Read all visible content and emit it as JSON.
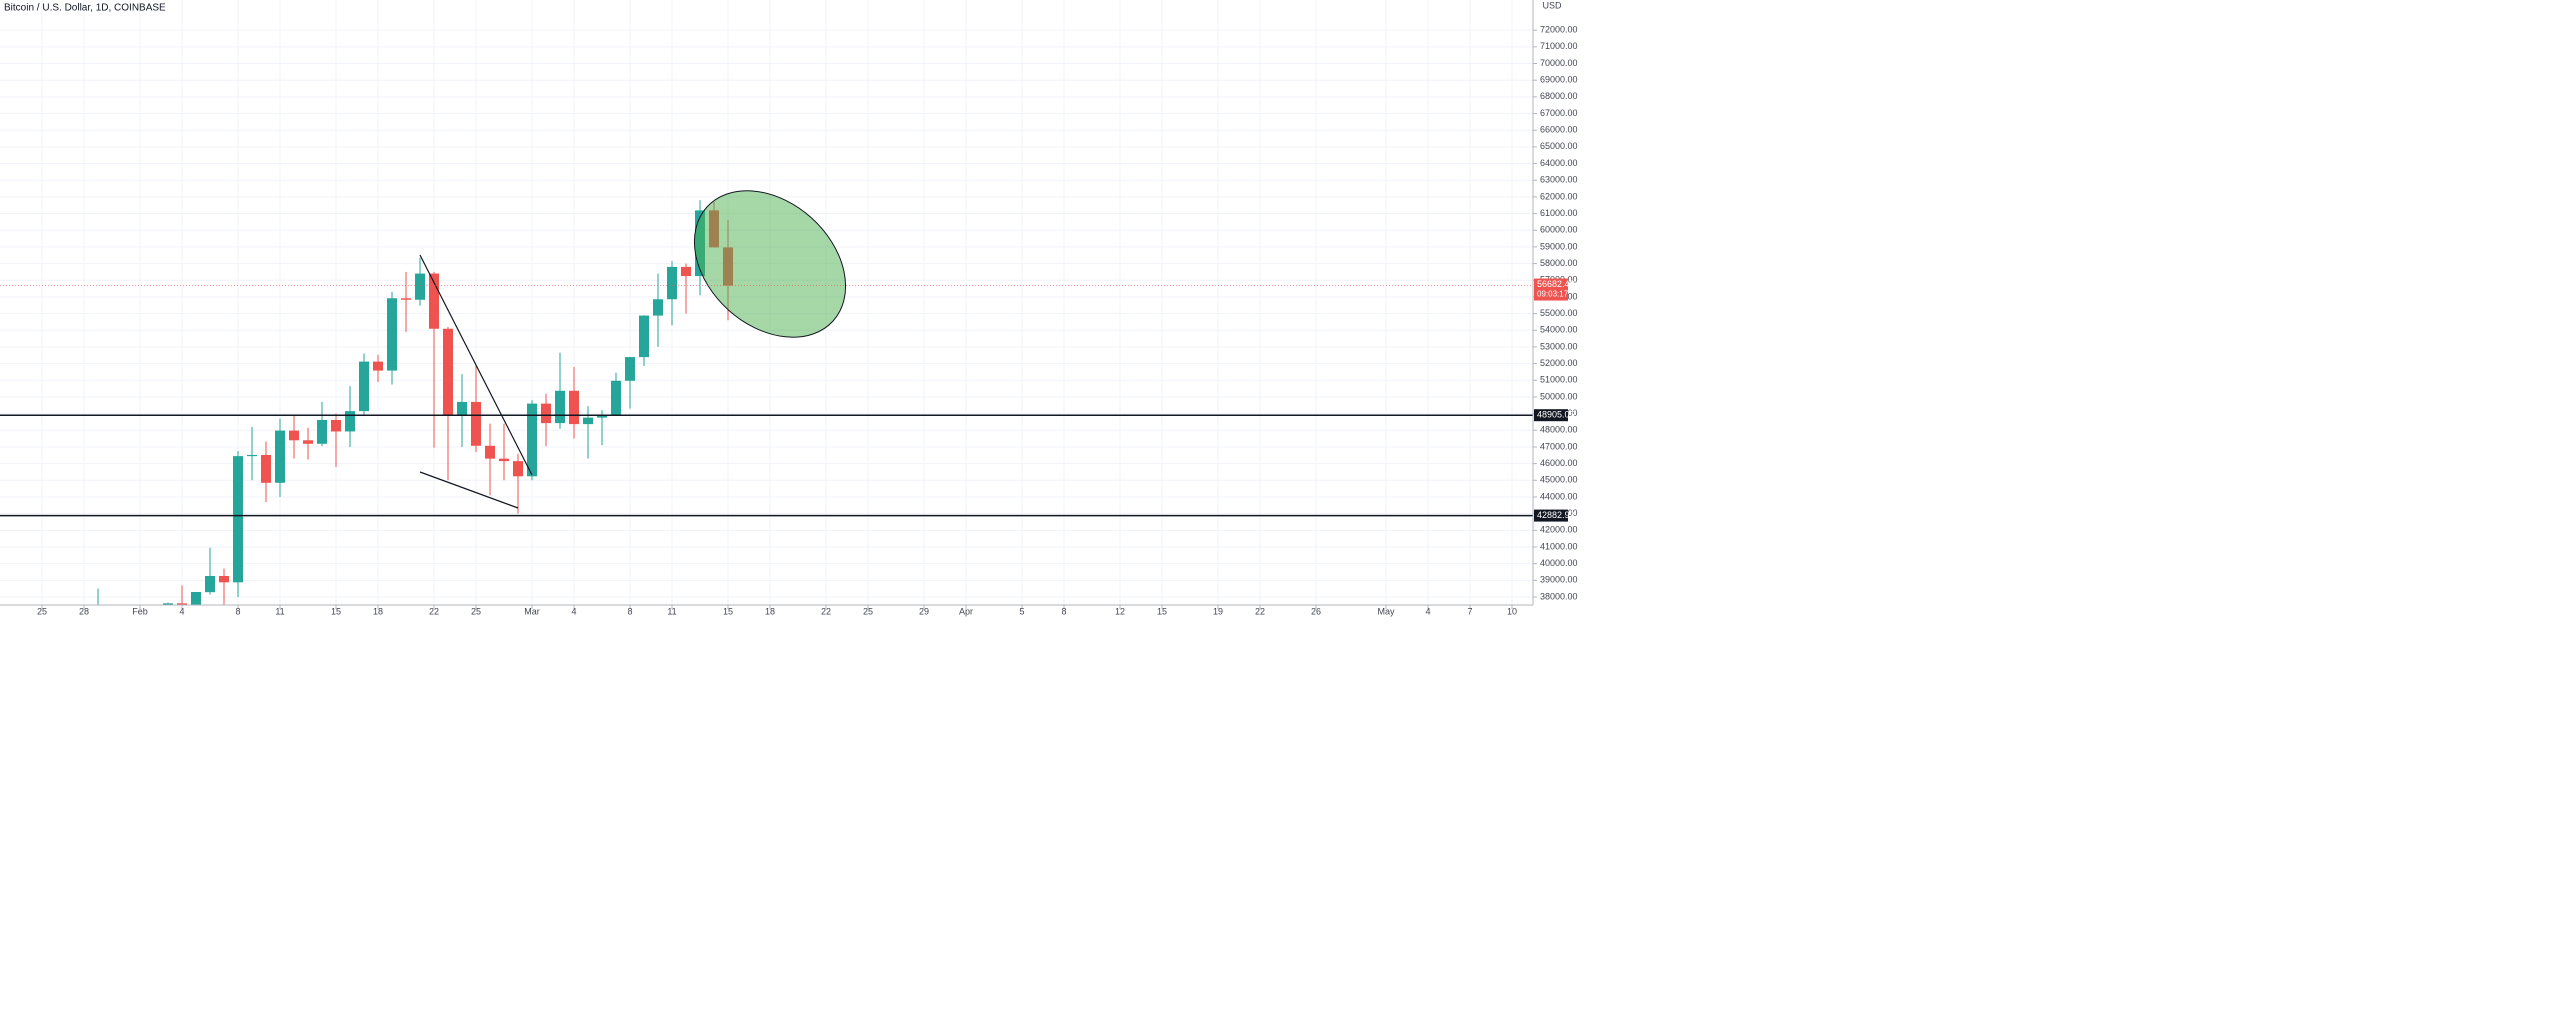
{
  "chart_data": {
    "type": "candlestick",
    "title": "Bitcoin / U.S. Dollar, 1D, COINBASE",
    "currency": "USD",
    "up_color": "#26a69a",
    "down_color": "#ef5350",
    "x": [
      "01-29",
      "02-03",
      "02-04",
      "02-05",
      "02-06",
      "02-07",
      "02-08",
      "02-09",
      "02-10",
      "02-11",
      "02-12",
      "02-13",
      "02-14",
      "02-15",
      "02-16",
      "02-17",
      "02-18",
      "02-19",
      "02-20",
      "02-21",
      "02-22",
      "02-23",
      "02-24",
      "02-25",
      "02-26",
      "02-27",
      "02-28",
      "03-01",
      "03-02",
      "03-03",
      "03-04",
      "03-05",
      "03-06",
      "03-07",
      "03-08",
      "03-09",
      "03-10",
      "03-11",
      "03-12",
      "03-13",
      "03-14",
      "03-15"
    ],
    "open": [
      34300,
      35480,
      37620,
      36900,
      38290,
      39260,
      38880,
      46450,
      46520,
      44850,
      47980,
      47400,
      47190,
      48620,
      47930,
      49150,
      52120,
      51580,
      55920,
      55830,
      57400,
      54090,
      48890,
      49700,
      47070,
      46300,
      46150,
      45240,
      49600,
      48430,
      50370,
      48370,
      48760,
      48880,
      50970,
      52390,
      54880,
      55860,
      57800,
      57250,
      61190,
      58970
    ],
    "high": [
      38500,
      37660,
      38700,
      38300,
      40955,
      39700,
      46750,
      48200,
      47330,
      48700,
      48900,
      48150,
      49700,
      49000,
      50650,
      52600,
      52530,
      56300,
      57500,
      58350,
      57500,
      54200,
      51370,
      51950,
      48400,
      48400,
      46600,
      49800,
      50200,
      52650,
      51800,
      49450,
      49200,
      51450,
      52400,
      54900,
      57400,
      58150,
      58000,
      61800,
      61700,
      60600
    ],
    "low": [
      31900,
      35360,
      36200,
      36600,
      38140,
      37350,
      37990,
      45000,
      43700,
      44000,
      46300,
      46250,
      47050,
      45800,
      47000,
      48950,
      50900,
      50750,
      53900,
      55480,
      46950,
      45000,
      47000,
      46700,
      44100,
      45000,
      43000,
      45000,
      47050,
      48100,
      47500,
      46300,
      47100,
      48880,
      49300,
      51850,
      53000,
      54300,
      55000,
      56100,
      58970,
      54600
    ],
    "close": [
      34300,
      37620,
      36900,
      38300,
      39260,
      38880,
      46450,
      46520,
      44850,
      47980,
      47400,
      47190,
      48620,
      47930,
      49150,
      52120,
      51580,
      55920,
      55830,
      57400,
      54090,
      48890,
      49700,
      47070,
      46300,
      46150,
      45240,
      49600,
      48430,
      50370,
      48370,
      48760,
      48880,
      50970,
      52390,
      54880,
      55860,
      57800,
      57250,
      61190,
      58970,
      56680
    ],
    "ylim": [
      37520,
      73810
    ],
    "yticks": [
      {
        "value": 38000,
        "label": "38000.00"
      },
      {
        "value": 39000,
        "label": "39000.00"
      },
      {
        "value": 40000,
        "label": "40000.00"
      },
      {
        "value": 41000,
        "label": "41000.00"
      },
      {
        "value": 42000,
        "label": "42000.00"
      },
      {
        "value": 43000,
        "label": "43000.00"
      },
      {
        "value": 44000,
        "label": "44000.00"
      },
      {
        "value": 45000,
        "label": "45000.00"
      },
      {
        "value": 46000,
        "label": "46000.00"
      },
      {
        "value": 47000,
        "label": "47000.00"
      },
      {
        "value": 48000,
        "label": "48000.00"
      },
      {
        "value": 49000,
        "label": "49000.00"
      },
      {
        "value": 50000,
        "label": "50000.00"
      },
      {
        "value": 51000,
        "label": "51000.00"
      },
      {
        "value": 52000,
        "label": "52000.00"
      },
      {
        "value": 53000,
        "label": "53000.00"
      },
      {
        "value": 54000,
        "label": "54000.00"
      },
      {
        "value": 55000,
        "label": "55000.00"
      },
      {
        "value": 56000,
        "label": "56000.00"
      },
      {
        "value": 57000,
        "label": "57000.00"
      },
      {
        "value": 58000,
        "label": "58000.00"
      },
      {
        "value": 59000,
        "label": "59000.00"
      },
      {
        "value": 60000,
        "label": "60000.00"
      },
      {
        "value": 61000,
        "label": "61000.00"
      },
      {
        "value": 62000,
        "label": "62000.00"
      },
      {
        "value": 63000,
        "label": "63000.00"
      },
      {
        "value": 64000,
        "label": "64000.00"
      },
      {
        "value": 65000,
        "label": "65000.00"
      },
      {
        "value": 66000,
        "label": "66000.00"
      },
      {
        "value": 67000,
        "label": "67000.00"
      },
      {
        "value": 68000,
        "label": "68000.00"
      },
      {
        "value": 69000,
        "label": "69000.00"
      },
      {
        "value": 70000,
        "label": "70000.00"
      },
      {
        "value": 71000,
        "label": "71000.00"
      },
      {
        "value": 72000,
        "label": "72000.00"
      }
    ],
    "xticks": [
      {
        "value": "01-25",
        "label": "25"
      },
      {
        "value": "01-28",
        "label": "28"
      },
      {
        "value": "02-01",
        "label": "Feb"
      },
      {
        "value": "02-04",
        "label": "4"
      },
      {
        "value": "02-08",
        "label": "8"
      },
      {
        "value": "02-11",
        "label": "11"
      },
      {
        "value": "02-15",
        "label": "15"
      },
      {
        "value": "02-18",
        "label": "18"
      },
      {
        "value": "02-22",
        "label": "22"
      },
      {
        "value": "02-25",
        "label": "25"
      },
      {
        "value": "03-01",
        "label": "Mar"
      },
      {
        "value": "03-04",
        "label": "4"
      },
      {
        "value": "03-08",
        "label": "8"
      },
      {
        "value": "03-11",
        "label": "11"
      },
      {
        "value": "03-15",
        "label": "15"
      },
      {
        "value": "03-18",
        "label": "18"
      },
      {
        "value": "03-22",
        "label": "22"
      },
      {
        "value": "03-25",
        "label": "25"
      },
      {
        "value": "03-29",
        "label": "29"
      },
      {
        "value": "04-01",
        "label": "Apr"
      },
      {
        "value": "04-05",
        "label": "5"
      },
      {
        "value": "04-08",
        "label": "8"
      },
      {
        "value": "04-12",
        "label": "12"
      },
      {
        "value": "04-15",
        "label": "15"
      },
      {
        "value": "04-19",
        "label": "19"
      },
      {
        "value": "04-22",
        "label": "22"
      },
      {
        "value": "04-26",
        "label": "26"
      },
      {
        "value": "05-01",
        "label": "May"
      },
      {
        "value": "05-04",
        "label": "4"
      },
      {
        "value": "05-07",
        "label": "7"
      },
      {
        "value": "05-10",
        "label": "10"
      }
    ],
    "hlines": [
      48905.05,
      42882.93
    ],
    "last_price": 56682.42,
    "countdown": "09:03:17",
    "grid": true
  }
}
